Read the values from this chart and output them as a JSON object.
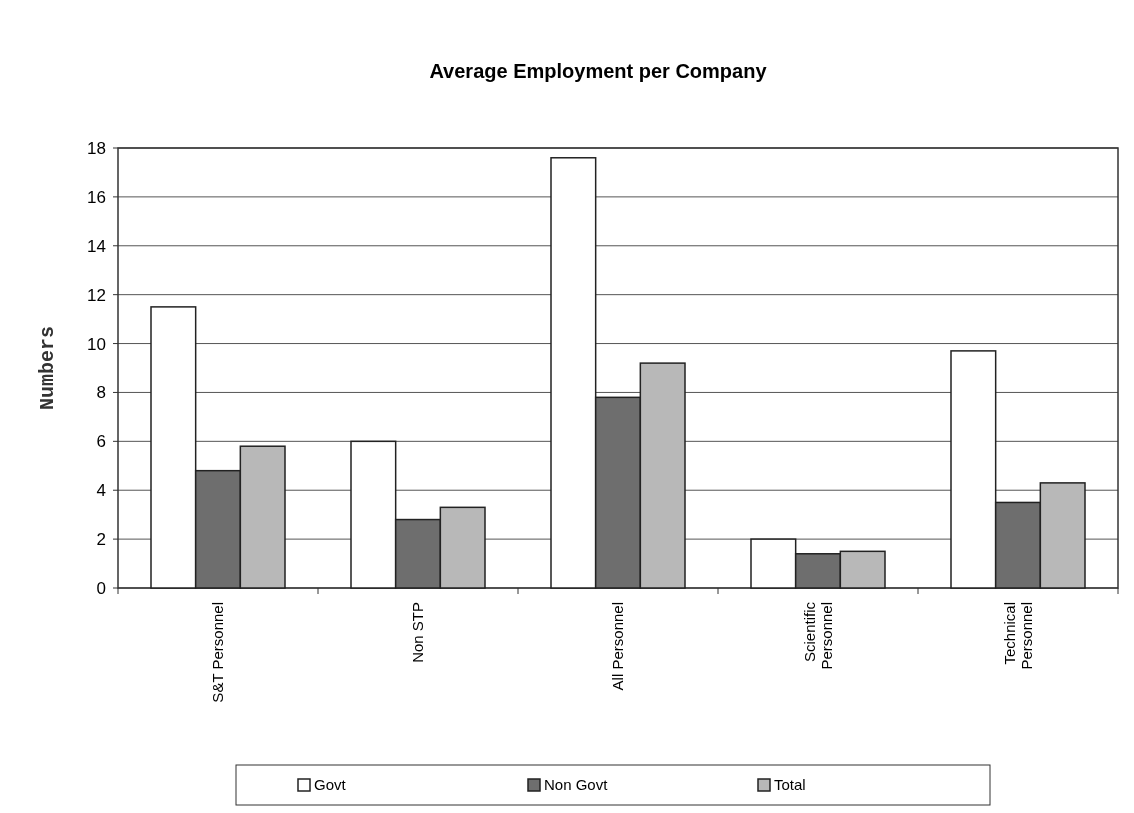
{
  "chart_data": {
    "type": "bar",
    "title": "Average Employment per Company",
    "ylabel": "Numbers",
    "categories": [
      "S&T Personnel",
      "Non STP",
      "All Personnel",
      "Scientific Personnel",
      "Technical Personnel"
    ],
    "series": [
      {
        "name": "Govt",
        "color": "#ffffff",
        "values": [
          11.5,
          6.0,
          17.6,
          2.0,
          9.7
        ]
      },
      {
        "name": "Non Govt",
        "color": "#6e6e6e",
        "values": [
          4.8,
          2.8,
          7.8,
          1.4,
          3.5
        ]
      },
      {
        "name": "Total",
        "color": "#b8b8b8",
        "values": [
          5.8,
          3.3,
          9.2,
          1.5,
          4.3
        ]
      }
    ],
    "ylim": [
      0,
      18
    ],
    "yticks": [
      0,
      2,
      4,
      6,
      8,
      10,
      12,
      14,
      16,
      18
    ],
    "grid": "y",
    "legend": "bottom"
  }
}
